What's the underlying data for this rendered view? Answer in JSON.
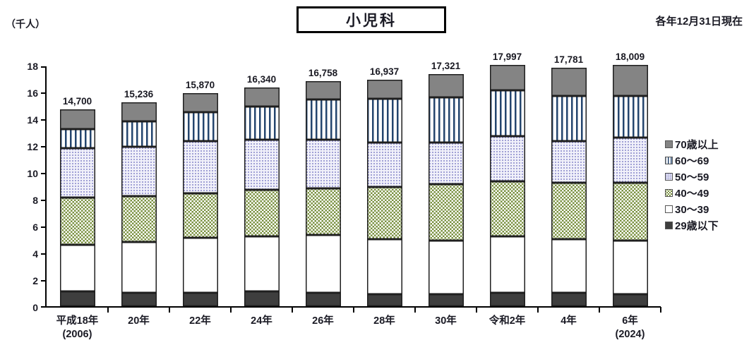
{
  "header": {
    "unit_label": "（千人）",
    "title": "小児科",
    "date_note": "各年12月31日現在"
  },
  "colors": {
    "bar_outline": "#1f1f1f",
    "age_70_plus_gray": "#848484",
    "age_29_under_dark": "#3e3e3e",
    "age_40_49_green": "#7a9140",
    "age_60_69_stripe_navy": "#24456e",
    "age_50_59_dot_lavender": "#9a9ad2",
    "text": "#1a1a24"
  },
  "chart_data": {
    "type": "bar",
    "stacked": true,
    "title": "小児科",
    "subtitle": "各年12月31日現在",
    "ylabel": "（千人）",
    "xlabel": "",
    "ylim": [
      0,
      18
    ],
    "yticks": [
      0,
      2,
      4,
      6,
      8,
      10,
      12,
      14,
      16,
      18
    ],
    "grid": false,
    "legend_position": "right",
    "categories": [
      {
        "label": "平成18年",
        "sublabel": "(2006)"
      },
      {
        "label": "20年",
        "sublabel": ""
      },
      {
        "label": "22年",
        "sublabel": ""
      },
      {
        "label": "24年",
        "sublabel": ""
      },
      {
        "label": "26年",
        "sublabel": ""
      },
      {
        "label": "28年",
        "sublabel": ""
      },
      {
        "label": "30年",
        "sublabel": ""
      },
      {
        "label": "令和2年",
        "sublabel": ""
      },
      {
        "label": "4年",
        "sublabel": ""
      },
      {
        "label": "6年",
        "sublabel": "(2024)"
      }
    ],
    "totals": [
      14700,
      15236,
      15870,
      16340,
      16758,
      16937,
      17321,
      17997,
      17781,
      18009
    ],
    "totals_labels": [
      "14,700",
      "15,236",
      "15,870",
      "16,340",
      "16,758",
      "16,937",
      "17,321",
      "17,997",
      "17,781",
      "18,009"
    ],
    "series_note": "values in thousands of persons, stacked bottom-up",
    "series": [
      {
        "name": "29歳以下",
        "pattern": "solid-dark",
        "values": [
          1.1,
          1.0,
          1.0,
          1.1,
          1.0,
          0.9,
          0.9,
          1.0,
          1.0,
          0.9
        ]
      },
      {
        "name": "30～39",
        "pattern": "white",
        "values": [
          3.5,
          3.8,
          4.1,
          4.1,
          4.3,
          4.1,
          4.0,
          4.2,
          4.0,
          4.0
        ]
      },
      {
        "name": "40～49",
        "pattern": "green-check",
        "values": [
          3.5,
          3.4,
          3.3,
          3.5,
          3.5,
          3.9,
          4.2,
          4.1,
          4.2,
          4.3
        ]
      },
      {
        "name": "50～59",
        "pattern": "dot-grid",
        "values": [
          3.7,
          3.7,
          3.9,
          3.7,
          3.6,
          3.3,
          3.1,
          3.4,
          3.1,
          3.4
        ]
      },
      {
        "name": "60～69",
        "pattern": "v-stripes",
        "values": [
          1.4,
          1.9,
          2.2,
          2.5,
          3.0,
          3.3,
          3.4,
          3.4,
          3.4,
          3.1
        ]
      },
      {
        "name": "70歳以上",
        "pattern": "solid-gray",
        "values": [
          1.5,
          1.4,
          1.4,
          1.4,
          1.4,
          1.4,
          1.7,
          1.9,
          2.1,
          2.3
        ]
      }
    ],
    "legend": [
      {
        "label": "70歳以上",
        "pattern": "solid-gray"
      },
      {
        "label": "60～69",
        "pattern": "v-stripes"
      },
      {
        "label": "50～59",
        "pattern": "dot-grid"
      },
      {
        "label": "40～49",
        "pattern": "green-check"
      },
      {
        "label": "30～39",
        "pattern": "white"
      },
      {
        "label": "29歳以下",
        "pattern": "solid-dark"
      }
    ]
  }
}
